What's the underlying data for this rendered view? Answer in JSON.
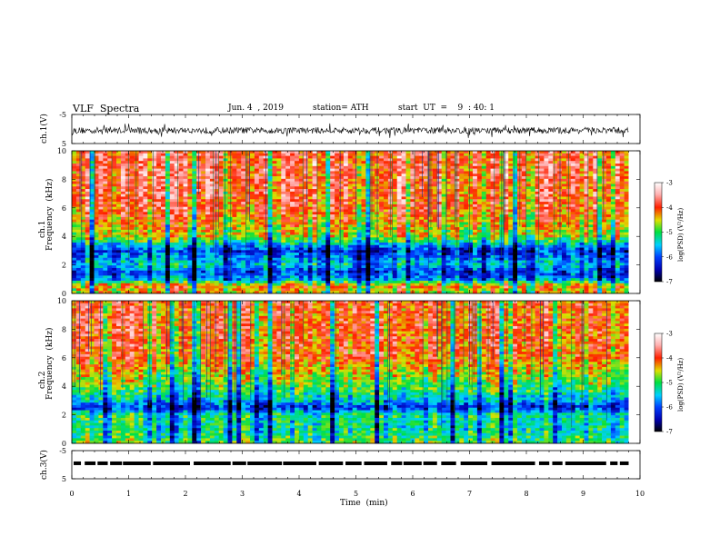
{
  "header": {
    "title": "VLF  Spectra",
    "date": "Jun. 4  , 2019",
    "station": "station= ATH",
    "start": "start  UT  =    9  : 40: 1"
  },
  "colors": {
    "frame": "#000000",
    "background": "#ffffff"
  },
  "chart_data": [
    {
      "type": "line",
      "name": "ch1-waveform",
      "ylabel": "ch.1(V)",
      "xlim": [
        0,
        10
      ],
      "ylim": [
        -5,
        5
      ],
      "yticks": [
        "5",
        "-5"
      ],
      "baseline_v": -0.5,
      "description_visible": "dense black waveform trace, amplitude roughly ±1.5 V around -0.5 V"
    },
    {
      "type": "heatmap",
      "name": "ch1-spectrogram",
      "ylabel_line1": "ch.1",
      "ylabel_line2": "Frequency  (kHz)",
      "xlim": [
        0,
        10
      ],
      "ylim": [
        0,
        10
      ],
      "yticks": [
        "0",
        "2",
        "4",
        "6",
        "8",
        "10"
      ],
      "data_end_min": 9.8,
      "colorbar": {
        "label": "log(PSD) (V²/Hz)",
        "range": [
          -7,
          -3
        ],
        "ticks": [
          "-3",
          "-4",
          "-5",
          "-6",
          "-7"
        ]
      },
      "level_profile_khz": [
        {
          "f": 0.0,
          "v": -4.6
        },
        {
          "f": 0.5,
          "v": -4.2
        },
        {
          "f": 1.0,
          "v": -5.7
        },
        {
          "f": 1.5,
          "v": -6.1
        },
        {
          "f": 2.0,
          "v": -5.5
        },
        {
          "f": 2.5,
          "v": -5.8
        },
        {
          "f": 3.0,
          "v": -6.2
        },
        {
          "f": 3.5,
          "v": -5.4
        },
        {
          "f": 4.0,
          "v": -4.6
        },
        {
          "f": 5.0,
          "v": -4.3
        },
        {
          "f": 6.0,
          "v": -4.0
        },
        {
          "f": 8.0,
          "v": -3.9
        },
        {
          "f": 10.0,
          "v": -3.9
        }
      ]
    },
    {
      "type": "heatmap",
      "name": "ch2-spectrogram",
      "ylabel_line1": "ch.2",
      "ylabel_line2": "Frequency  (kHz)",
      "xlim": [
        0,
        10
      ],
      "ylim": [
        0,
        10
      ],
      "yticks": [
        "0",
        "2",
        "4",
        "6",
        "8",
        "10"
      ],
      "data_end_min": 9.8,
      "colorbar": {
        "label": "log(PSD) (V²/Hz)",
        "range": [
          -7,
          -3
        ],
        "ticks": [
          "-3",
          "-4",
          "-5",
          "-6",
          "-7"
        ]
      },
      "level_profile_khz": [
        {
          "f": 0.0,
          "v": -5.0
        },
        {
          "f": 0.5,
          "v": -5.2
        },
        {
          "f": 1.0,
          "v": -5.3
        },
        {
          "f": 1.5,
          "v": -5.3
        },
        {
          "f": 2.0,
          "v": -5.2
        },
        {
          "f": 2.5,
          "v": -6.3
        },
        {
          "f": 3.0,
          "v": -5.6
        },
        {
          "f": 4.0,
          "v": -5.0
        },
        {
          "f": 5.0,
          "v": -4.6
        },
        {
          "f": 6.0,
          "v": -4.2
        },
        {
          "f": 8.0,
          "v": -4.1
        },
        {
          "f": 10.0,
          "v": -4.1
        }
      ]
    },
    {
      "type": "line",
      "name": "ch3-waveform",
      "ylabel": "ch.3(V)",
      "xlim": [
        0,
        10
      ],
      "ylim": [
        -5,
        5
      ],
      "yticks": [
        "5",
        "-5"
      ],
      "baseline_v": 0.5,
      "description_visible": "thick black trace near 0.5 V with short gaps"
    }
  ],
  "x_axis": {
    "label": "Time  (min)",
    "ticks": [
      "0",
      "1",
      "2",
      "3",
      "4",
      "5",
      "6",
      "7",
      "8",
      "9",
      "10"
    ]
  }
}
